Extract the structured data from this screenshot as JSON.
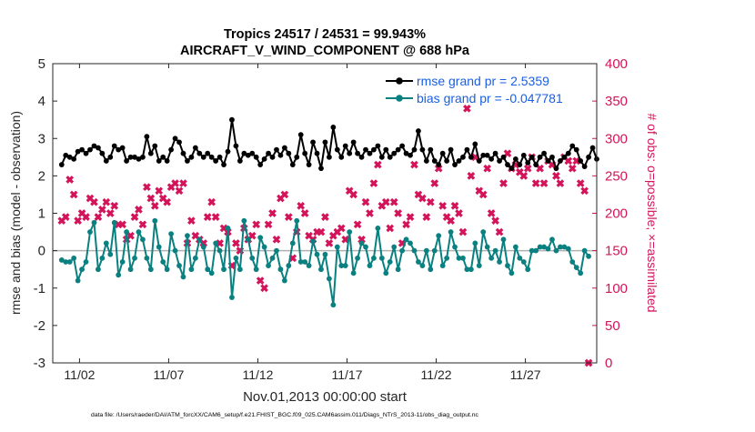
{
  "chart_data": {
    "type": "line",
    "title": "Tropics 24517 / 24531 = 99.943%",
    "subtitle": "AIRCRAFT_V_WIND_COMPONENT @ 688 hPa",
    "xlabel": "Nov.01,2013 00:00:00 start",
    "ylabel_left": "rmse and bias (model - observation)",
    "ylabel_right": "# of obs: o=possible; ×=assimilated",
    "footer": "data file: /Users/raeder/DAI/ATM_forcXX/CAM6_setup/f.e21.FHIST_BGC.f09_025.CAM6assim.011/Diags_NTrS_2013-11/obs_diag_output.nc",
    "xlim": [
      0.5,
      31.0
    ],
    "ylim_left": [
      -3,
      5
    ],
    "ylim_right": [
      0,
      400
    ],
    "x_ticks": [
      2,
      7,
      12,
      17,
      22,
      27
    ],
    "x_tick_labels": [
      "11/02",
      "11/07",
      "11/12",
      "11/17",
      "11/22",
      "11/27"
    ],
    "y_left_ticks": [
      -3,
      -2,
      -1,
      0,
      1,
      2,
      3,
      4,
      5
    ],
    "y_right_ticks": [
      0,
      50,
      100,
      150,
      200,
      250,
      300,
      350,
      400
    ],
    "colors": {
      "rmse": "#000000",
      "bias": "#0a8080",
      "obs": "#d4145a",
      "legend_text": "#1a5fe0",
      "zero_line": "#b0b0b0"
    },
    "legend": [
      {
        "name": "rmse grand pr = 2.5359",
        "key": "rmse"
      },
      {
        "name": "bias grand pr = -0.047781",
        "key": "bias"
      }
    ],
    "series": {
      "rmse": [
        2.3,
        2.55,
        2.5,
        2.45,
        2.65,
        2.7,
        2.6,
        2.7,
        2.8,
        2.75,
        2.6,
        2.4,
        2.5,
        2.8,
        2.7,
        2.75,
        2.4,
        2.5,
        2.5,
        2.45,
        2.5,
        3.05,
        2.6,
        2.8,
        2.4,
        2.5,
        2.4,
        2.7,
        3.0,
        2.9,
        2.6,
        2.4,
        2.5,
        2.75,
        2.6,
        2.5,
        2.6,
        2.5,
        2.4,
        2.5,
        2.3,
        2.65,
        3.5,
        2.8,
        2.4,
        2.6,
        2.55,
        2.6,
        2.5,
        2.3,
        2.45,
        2.6,
        2.5,
        2.7,
        2.55,
        2.75,
        2.6,
        2.3,
        2.5,
        3.1,
        2.6,
        2.3,
        2.9,
        2.6,
        2.2,
        2.9,
        2.5,
        3.3,
        2.7,
        2.5,
        2.8,
        2.6,
        2.9,
        2.6,
        2.5,
        2.7,
        2.6,
        2.7,
        2.8,
        2.5,
        2.7,
        2.5,
        2.6,
        2.7,
        2.8,
        2.6,
        2.55,
        2.7,
        3.2,
        2.7,
        2.4,
        2.7,
        2.4,
        2.3,
        2.6,
        2.4,
        2.7,
        2.3,
        2.4,
        2.5,
        2.7,
        2.5,
        2.85,
        2.4,
        2.55,
        2.55,
        2.45,
        2.6,
        2.4,
        2.5,
        2.3,
        2.2,
        2.45,
        2.3,
        2.55,
        2.35,
        2.5,
        2.3,
        2.5,
        2.6,
        2.4,
        2.5,
        2.2,
        2.4,
        2.5,
        2.6,
        2.8,
        2.7,
        2.4,
        2.25,
        2.5,
        2.75,
        2.45
      ],
      "bias": [
        -0.25,
        -0.3,
        -0.3,
        -0.2,
        -0.8,
        -0.5,
        -0.3,
        0.5,
        0.75,
        -0.5,
        -0.2,
        0.2,
        -0.1,
        0.75,
        -0.65,
        -0.3,
        0.5,
        -0.5,
        -0.2,
        0.5,
        0.3,
        -0.2,
        -0.5,
        0.8,
        0.1,
        -0.3,
        -0.5,
        0.45,
        0.0,
        -0.4,
        -0.7,
        0.4,
        -0.5,
        -0.2,
        0.3,
        0.1,
        -0.5,
        -0.6,
        0.2,
        0.0,
        -0.5,
        0.6,
        -1.25,
        -0.2,
        -0.5,
        0.8,
        0.3,
        -0.2,
        -0.5,
        0.35,
        0.1,
        -0.4,
        -0.2,
        0.0,
        -0.5,
        -0.8,
        -0.4,
        0.2,
        0.8,
        -0.3,
        -0.3,
        -0.4,
        0.25,
        -0.1,
        -0.5,
        -0.1,
        -0.75,
        -1.45,
        0.1,
        -0.4,
        -0.4,
        0.5,
        -0.6,
        -0.2,
        0.2,
        0.1,
        -0.4,
        -0.2,
        0.6,
        -0.2,
        -0.6,
        -0.3,
        0.1,
        -0.5,
        0.0,
        0.3,
        0.2,
        0.0,
        -0.3,
        -0.4,
        0.0,
        -0.5,
        0.0,
        0.4,
        -0.4,
        -0.2,
        0.5,
        0.1,
        -0.2,
        -0.2,
        -0.5,
        -0.5,
        0.2,
        -0.4,
        0.5,
        0.1,
        -0.2,
        0.0,
        -0.3,
        0.3,
        -0.4,
        -0.6,
        0.1,
        -0.2,
        -0.3,
        -0.5,
        0.0,
        0.0,
        0.1,
        0.1,
        0.05,
        0.3,
        0.0,
        0.1,
        0.1,
        0.05,
        -0.3,
        -0.45,
        -0.6,
        0.0,
        -0.15
      ],
      "obs_assimilated": [
        190,
        195,
        245,
        225,
        190,
        200,
        195,
        220,
        215,
        195,
        205,
        215,
        200,
        210,
        185,
        185,
        165,
        170,
        195,
        205,
        185,
        235,
        220,
        210,
        230,
        220,
        215,
        235,
        240,
        230,
        240,
        160,
        190,
        170,
        165,
        160,
        195,
        215,
        195,
        160,
        180,
        175,
        130,
        160,
        150,
        180,
        165,
        170,
        185,
        110,
        100,
        185,
        200,
        165,
        220,
        225,
        195,
        140,
        175,
        210,
        200,
        170,
        165,
        175,
        175,
        195,
        160,
        170,
        175,
        180,
        165,
        230,
        225,
        185,
        165,
        215,
        200,
        240,
        265,
        210,
        215,
        180,
        215,
        200,
        160,
        185,
        195,
        265,
        225,
        220,
        195,
        215,
        240,
        260,
        210,
        195,
        190,
        210,
        200,
        175,
        340,
        250,
        275,
        230,
        225,
        260,
        200,
        190,
        175,
        240,
        280,
        260,
        265,
        255,
        250,
        260,
        275,
        240,
        260,
        240,
        270,
        265,
        250,
        240,
        275,
        270,
        260,
        270,
        240,
        230,
        0
      ]
    }
  }
}
